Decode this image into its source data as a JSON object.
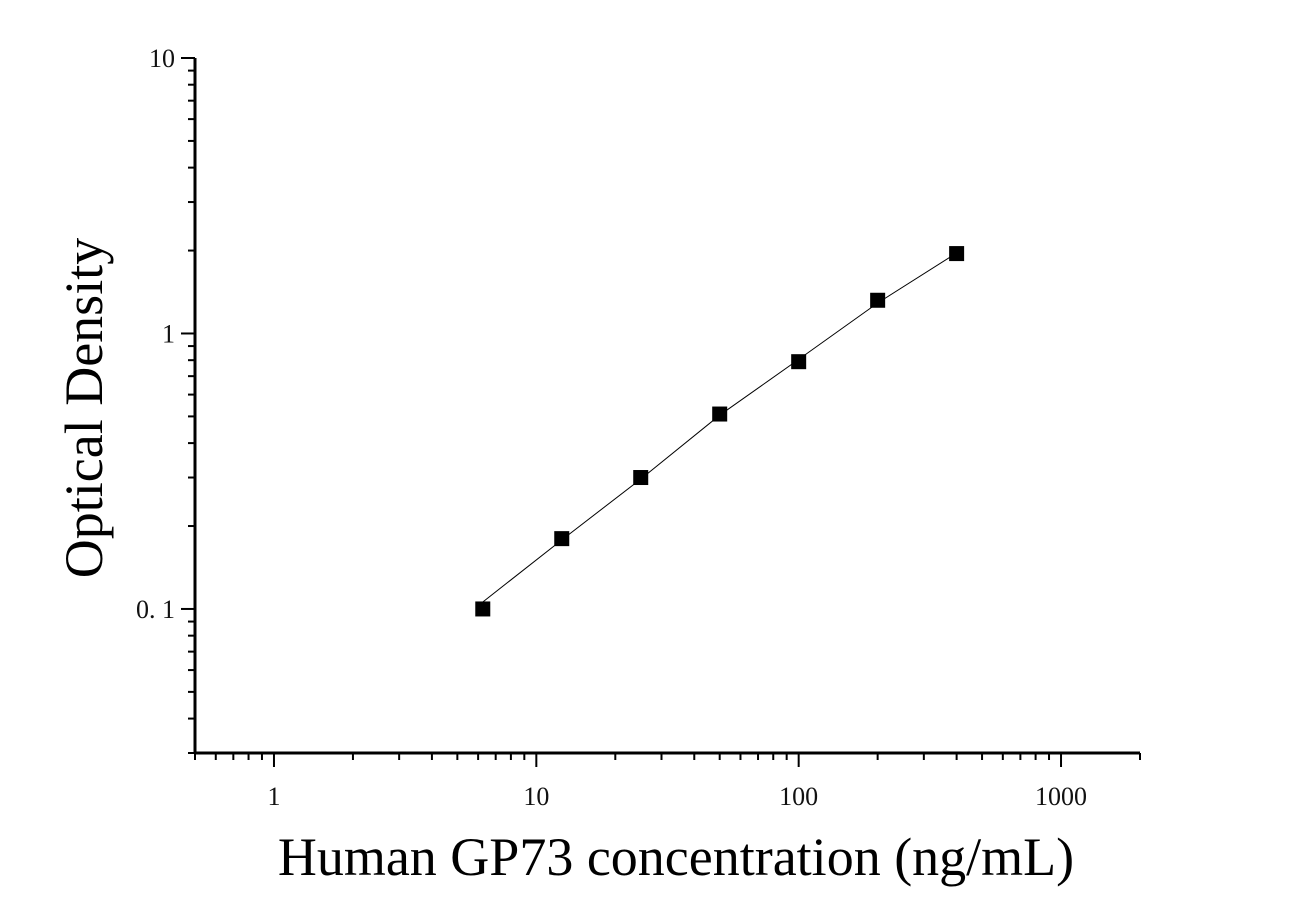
{
  "chart_data": {
    "type": "scatter",
    "title": "",
    "xlabel": "Human GP73 concentration (ng/mL)",
    "ylabel": "Optical Density",
    "x_scale": "log",
    "y_scale": "log",
    "xlim": [
      0.5,
      2000
    ],
    "ylim": [
      0.03,
      10
    ],
    "x_ticks": [
      {
        "value": 1,
        "label": "1"
      },
      {
        "value": 10,
        "label": "10"
      },
      {
        "value": 100,
        "label": "100"
      },
      {
        "value": 1000,
        "label": "1000"
      }
    ],
    "y_ticks": [
      {
        "value": 0.1,
        "label": "0. 1"
      },
      {
        "value": 1,
        "label": "1"
      },
      {
        "value": 10,
        "label": "10"
      }
    ],
    "grid": false,
    "legend": "none",
    "series": [
      {
        "marker": "square",
        "color": "#000000",
        "x": [
          6.25,
          12.5,
          25,
          50,
          100,
          200,
          400
        ],
        "y": [
          0.1,
          0.18,
          0.3,
          0.51,
          0.79,
          1.32,
          1.95
        ]
      }
    ],
    "fit_curve": {
      "color": "#000000",
      "x": [
        6.25,
        12.5,
        25,
        50,
        100,
        200,
        400
      ],
      "y": [
        0.106,
        0.178,
        0.296,
        0.505,
        0.805,
        1.29,
        1.96
      ]
    }
  }
}
